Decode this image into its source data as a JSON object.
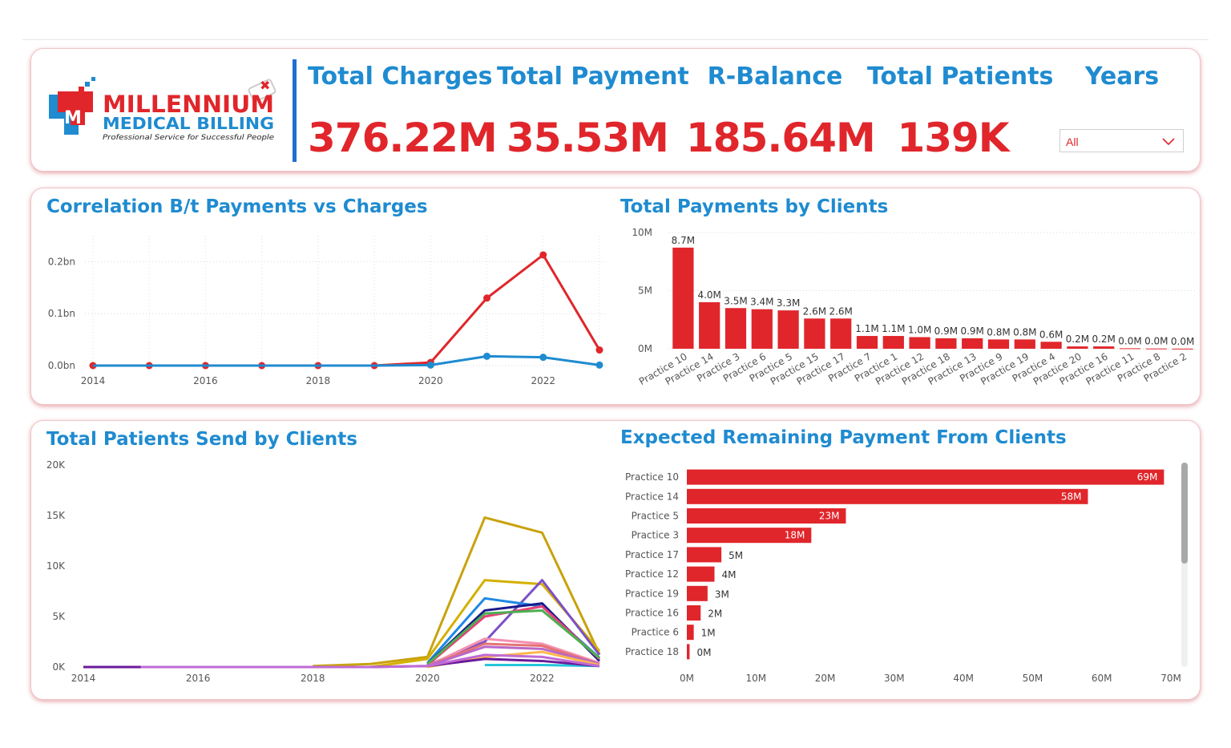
{
  "logo": {
    "line1": "MILLENNIUM",
    "line2": "MEDICAL BILLING",
    "tagline": "Professional Service for Successful People"
  },
  "kpis": [
    {
      "title": "Total Charges",
      "value": "376.22M"
    },
    {
      "title": "Total Payment",
      "value": "35.53M"
    },
    {
      "title": "R-Balance",
      "value": "185.64M"
    },
    {
      "title": "Total Patients",
      "value": "139K"
    }
  ],
  "years_filter": {
    "title": "Years",
    "selected": "All"
  },
  "colors": {
    "accent_blue": "#1f8bd0",
    "accent_red": "#e0262b"
  },
  "chart_data": [
    {
      "type": "line",
      "title": "Correlation B/t Payments vs Charges",
      "x": [
        2014,
        2015,
        2016,
        2017,
        2018,
        2019,
        2020,
        2021,
        2022,
        2023
      ],
      "x_ticks": [
        "2014",
        "2016",
        "2018",
        "2020",
        "2022"
      ],
      "y_ticks": [
        "0.0bn",
        "0.1bn",
        "0.2bn"
      ],
      "y_tick_values": [
        0,
        0.1,
        0.2
      ],
      "ylim": [
        0,
        0.25
      ],
      "grid": true,
      "series": [
        {
          "color": "#e0262b",
          "values": [
            0,
            0,
            0,
            0,
            0,
            0,
            0.006,
            0.13,
            0.213,
            0.03
          ],
          "markers_from": 0
        },
        {
          "color": "#1f8bd0",
          "values": [
            0,
            0,
            0,
            0,
            0,
            0,
            0.001,
            0.018,
            0.016,
            0.001
          ],
          "markers_from": 6
        }
      ]
    },
    {
      "type": "bar",
      "title": "Total Payments by Clients",
      "categories": [
        "Practice 10",
        "Practice 14",
        "Practice 3",
        "Practice 6",
        "Practice 5",
        "Practice 15",
        "Practice 17",
        "Practice 7",
        "Practice 1",
        "Practice 12",
        "Practice 18",
        "Practice 13",
        "Practice 9",
        "Practice 19",
        "Practice 4",
        "Practice 20",
        "Practice 16",
        "Practice 11",
        "Practice 8",
        "Practice 2"
      ],
      "values": [
        8.7,
        4.0,
        3.5,
        3.4,
        3.3,
        2.6,
        2.6,
        1.1,
        1.1,
        1.0,
        0.9,
        0.9,
        0.8,
        0.8,
        0.6,
        0.2,
        0.2,
        0.04,
        0.02,
        0.01
      ],
      "data_labels": [
        "8.7M",
        "4.0M",
        "3.5M",
        "3.4M",
        "3.3M",
        "2.6M",
        "2.6M",
        "1.1M",
        "1.1M",
        "1.0M",
        "0.9M",
        "0.9M",
        "0.8M",
        "0.8M",
        "0.6M",
        "0.2M",
        "0.2M",
        "0.0M",
        "0.0M",
        "0.0M"
      ],
      "y_ticks": [
        "0M",
        "5M",
        "10M"
      ],
      "y_tick_values": [
        0,
        5,
        10
      ],
      "ylim": [
        0,
        10
      ],
      "color": "#e0262b"
    },
    {
      "type": "line",
      "title": "Total Patients Send by Clients",
      "x": [
        2014,
        2015,
        2016,
        2017,
        2018,
        2019,
        2020,
        2021,
        2022,
        2023
      ],
      "x_ticks": [
        "2014",
        "2016",
        "2018",
        "2020",
        "2022"
      ],
      "y_ticks": [
        "0K",
        "5K",
        "10K",
        "15K",
        "20K"
      ],
      "y_tick_values": [
        0,
        5,
        10,
        15,
        20
      ],
      "ylim": [
        0,
        20
      ],
      "grid": false,
      "series": [
        {
          "color": "#c8a20c",
          "values": [
            null,
            null,
            null,
            null,
            0.1,
            0.3,
            1.0,
            14.8,
            13.3,
            1.3
          ]
        },
        {
          "color": "#d4b000",
          "values": [
            null,
            null,
            null,
            null,
            null,
            0,
            0.8,
            8.6,
            8.2,
            1.6
          ]
        },
        {
          "color": "#7b4fc9",
          "values": [
            null,
            null,
            null,
            null,
            null,
            null,
            0.2,
            2.5,
            8.6,
            1.2
          ]
        },
        {
          "color": "#1e88e5",
          "values": [
            null,
            null,
            null,
            null,
            null,
            null,
            0.4,
            6.8,
            6.0,
            0.9
          ]
        },
        {
          "color": "#1a1a8c",
          "values": [
            null,
            null,
            null,
            null,
            null,
            null,
            0.3,
            5.6,
            6.3,
            0.6
          ]
        },
        {
          "color": "#e8407a",
          "values": [
            null,
            null,
            null,
            null,
            null,
            null,
            0.2,
            5.0,
            6.0,
            0.8
          ]
        },
        {
          "color": "#4caf50",
          "values": [
            null,
            null,
            null,
            null,
            null,
            null,
            0.3,
            5.3,
            5.6,
            0.9
          ]
        },
        {
          "color": "#f48fb1",
          "values": [
            null,
            null,
            null,
            null,
            null,
            null,
            0.1,
            2.8,
            2.3,
            0.4
          ]
        },
        {
          "color": "#e57373",
          "values": [
            null,
            null,
            null,
            null,
            null,
            null,
            0.1,
            2.3,
            2.1,
            0.3
          ]
        },
        {
          "color": "#ba68c8",
          "values": [
            null,
            null,
            null,
            null,
            null,
            null,
            0.1,
            2.0,
            1.8,
            0.3
          ]
        },
        {
          "color": "#ffb74d",
          "values": [
            null,
            null,
            null,
            null,
            null,
            null,
            0.0,
            1.0,
            1.5,
            0.2
          ]
        },
        {
          "color": "#26c6da",
          "values": [
            null,
            null,
            null,
            null,
            null,
            null,
            null,
            0.2,
            0.2,
            0.1
          ]
        },
        {
          "color": "#6a1b9a",
          "values": [
            0,
            0,
            0,
            0,
            0,
            0,
            0.1,
            0.8,
            0.6,
            0.1
          ]
        },
        {
          "color": "#c06bd6",
          "values": [
            null,
            0,
            0,
            0,
            0,
            0,
            0.1,
            1.2,
            1.0,
            0.1
          ]
        }
      ]
    },
    {
      "type": "bar",
      "orientation": "horizontal",
      "title": "Expected Remaining Payment From Clients",
      "categories": [
        "Practice 10",
        "Practice 14",
        "Practice 5",
        "Practice 3",
        "Practice 17",
        "Practice 12",
        "Practice 19",
        "Practice 16",
        "Practice 6",
        "Practice 18"
      ],
      "values": [
        69,
        58,
        23,
        18,
        5,
        4,
        3,
        2,
        1,
        0.4
      ],
      "data_labels": [
        "69M",
        "58M",
        "23M",
        "18M",
        "5M",
        "4M",
        "3M",
        "2M",
        "1M",
        "0M"
      ],
      "x_ticks": [
        "0M",
        "10M",
        "20M",
        "30M",
        "40M",
        "50M",
        "60M",
        "70M"
      ],
      "x_tick_values": [
        0,
        10,
        20,
        30,
        40,
        50,
        60,
        70
      ],
      "xlim": [
        0,
        70
      ],
      "color": "#e0262b"
    }
  ]
}
